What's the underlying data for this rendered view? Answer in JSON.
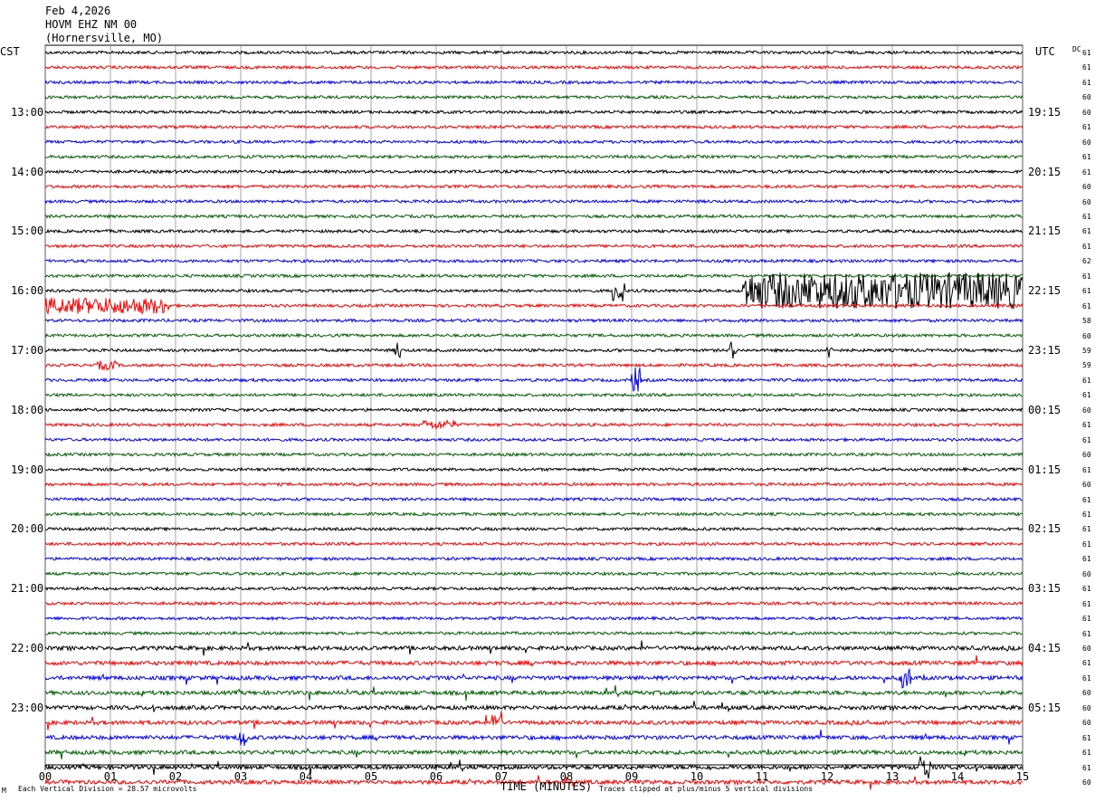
{
  "header": {
    "date": "Feb 4,2026",
    "station": "HOVM EHZ NM 00",
    "location": "(Hornersville, MO)"
  },
  "left_timezone": "CST",
  "right_timezone": "UTC",
  "dc_label": "DC",
  "footer": {
    "scale_note": "Each Vertical Division =   28.57 microvolts",
    "x_title": "TIME (MINUTES)",
    "clip_note": "Traces clipped at plus/minus 5 vertical divisions",
    "logo_mark": "M"
  },
  "chart_data": {
    "type": "line",
    "xlim": [
      0,
      15
    ],
    "x_ticks": [
      "00",
      "01",
      "02",
      "03",
      "04",
      "05",
      "06",
      "07",
      "08",
      "09",
      "10",
      "11",
      "12",
      "13",
      "14",
      "15"
    ],
    "xlabel": "TIME (MINUTES)",
    "grid": true,
    "trace_colors": [
      "#000000",
      "#ff0000",
      "#0000ff",
      "#006400"
    ],
    "left_time_labels": [
      "13:00",
      "14:00",
      "15:00",
      "16:00",
      "17:00",
      "18:00",
      "19:00",
      "20:00",
      "21:00",
      "22:00",
      "23:00"
    ],
    "right_time_labels": [
      "19:15",
      "20:15",
      "21:15",
      "22:15",
      "23:15",
      "00:15",
      "01:15",
      "02:15",
      "03:15",
      "04:15",
      "05:15"
    ],
    "dc_offsets": [
      "61",
      "61",
      "61",
      "60",
      "60",
      "61",
      "60",
      "61",
      "61",
      "60",
      "60",
      "61",
      "61",
      "61",
      "62",
      "61",
      "61",
      "61",
      "58",
      "60",
      "59",
      "59",
      "61",
      "61",
      "60",
      "61",
      "61",
      "60",
      "61",
      "60",
      "61",
      "61",
      "61",
      "61",
      "61",
      "60",
      "61",
      "61",
      "61",
      "61",
      "60",
      "61",
      "61",
      "60",
      "60",
      "60",
      "61",
      "61",
      "61",
      "60"
    ],
    "events": [
      {
        "trace": 17,
        "from_min": 0.0,
        "to_min": 1.9,
        "amp": 9
      },
      {
        "trace": 16,
        "from_min": 8.7,
        "to_min": 8.9,
        "amp": 12
      },
      {
        "trace": 16,
        "from_min": 10.7,
        "to_min": 15.0,
        "amp": 20
      },
      {
        "trace": 20,
        "from_min": 5.35,
        "to_min": 5.45,
        "amp": 10
      },
      {
        "trace": 20,
        "from_min": 10.5,
        "to_min": 10.6,
        "amp": 10
      },
      {
        "trace": 20,
        "from_min": 12.0,
        "to_min": 12.1,
        "amp": 9
      },
      {
        "trace": 22,
        "from_min": 9.0,
        "to_min": 9.15,
        "amp": 14
      },
      {
        "trace": 21,
        "from_min": 0.8,
        "to_min": 1.1,
        "amp": 5
      },
      {
        "trace": 25,
        "from_min": 5.8,
        "to_min": 6.3,
        "amp": 5
      },
      {
        "trace": 45,
        "from_min": 6.85,
        "to_min": 7.0,
        "amp": 14
      },
      {
        "trace": 46,
        "from_min": 2.95,
        "to_min": 3.1,
        "amp": 10
      },
      {
        "trace": 48,
        "from_min": 13.4,
        "to_min": 13.6,
        "amp": 14
      },
      {
        "trace": 42,
        "from_min": 13.1,
        "to_min": 13.3,
        "amp": 12
      }
    ]
  }
}
